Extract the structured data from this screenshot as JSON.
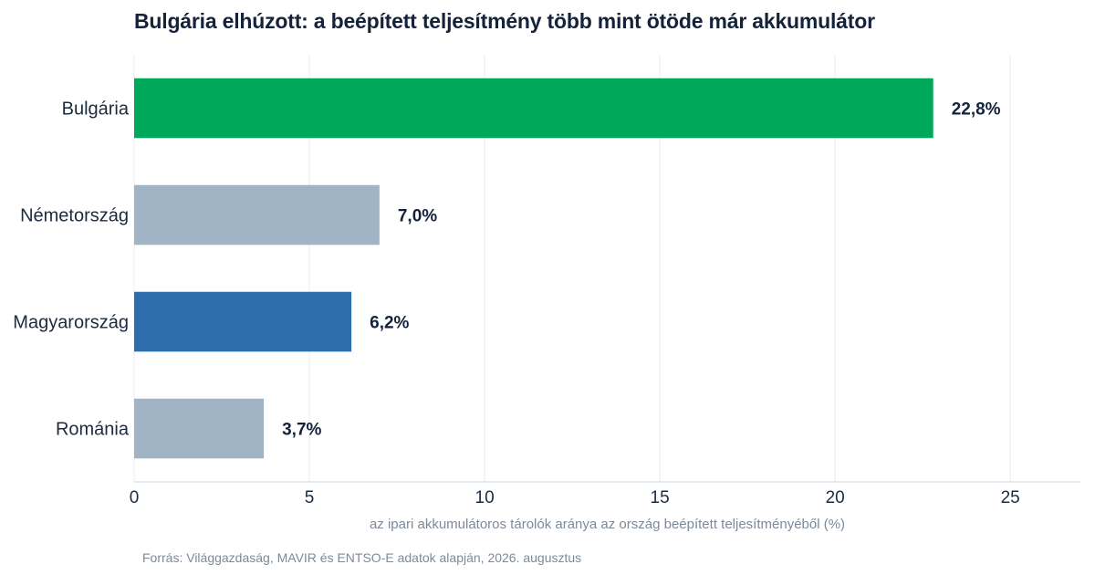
{
  "title": "Bulgária elhúzott: a beépített teljesítmény több mint ötöde már akkumulátor",
  "source": "Forrás: Világgazdaság, MAVIR és ENTSO-E adatok alapján, 2026. augusztus",
  "chart_data": {
    "type": "bar",
    "orientation": "horizontal",
    "title": "Bulgária elhúzott: a beépített teljesítmény több mint ötöde már akkumulátor",
    "xlabel": "az ipari akkumulátoros tárolók aránya az ország beépített teljesítményéből (%)",
    "ylabel": "",
    "categories": [
      "Bulgária",
      "Németország",
      "Magyarország",
      "Románia"
    ],
    "values": [
      22.8,
      7.0,
      6.2,
      3.7
    ],
    "value_labels": [
      "22,8%",
      "7,0%",
      "6,2%",
      "3,7%"
    ],
    "bar_colors": [
      "#00a85a",
      "#a1b4c6",
      "#2e6dae",
      "#a1b4c6"
    ],
    "xlim": [
      0,
      27
    ],
    "xticks": [
      0,
      5,
      10,
      15,
      20,
      25
    ],
    "grid": "vertical",
    "legend": "none"
  },
  "colors": {
    "title": "#14233a",
    "text": "#1c2b3d",
    "muted": "#7d8a9a",
    "grid": "#e8ecf0",
    "axis": "#cfd6dd"
  }
}
